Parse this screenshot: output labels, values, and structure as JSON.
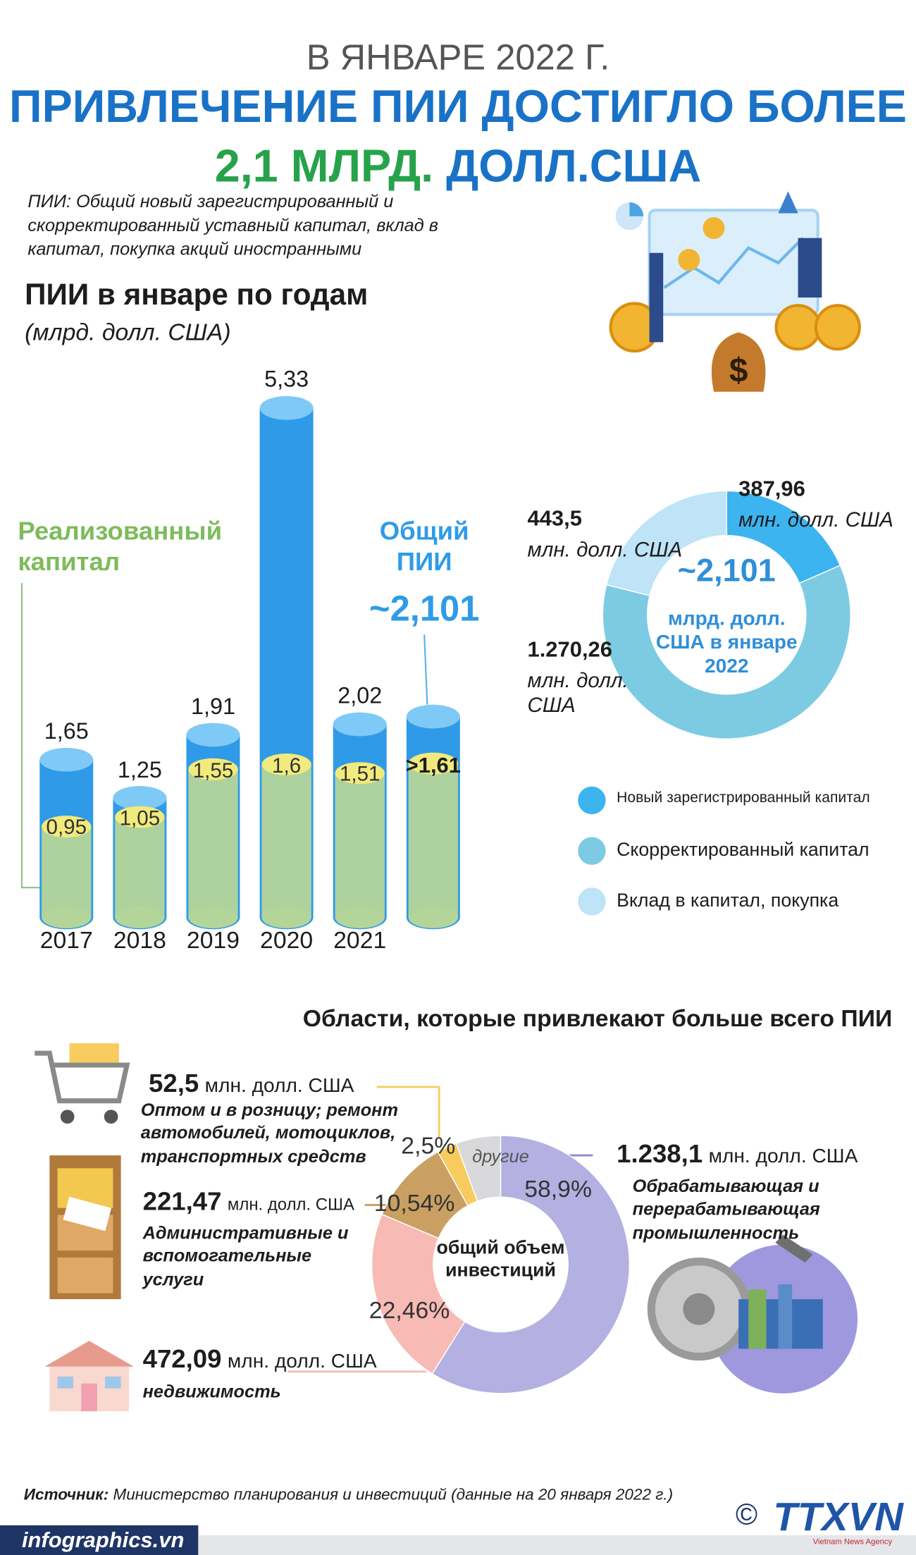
{
  "header": {
    "kicker": "В ЯНВАРЕ 2022 Г.",
    "title": "ПРИВЛЕЧЕНИЕ ПИИ ДОСТИГЛО БОЛЕЕ",
    "title_highlight": "2,1 МЛРД.",
    "title_end": "ДОЛЛ.США"
  },
  "definition": "ПИИ: Общий новый зарегистрированный и скорректированный уставный капитал, вклад в капитал, покупка акций иностранными",
  "chart_data": [
    {
      "type": "bar",
      "title": "ПИИ в январе по годам",
      "subtitle": "(млрд. долл. США)",
      "categories": [
        "2017",
        "2018",
        "2019",
        "2020",
        "2021",
        null
      ],
      "ylim": [
        0,
        5.5
      ],
      "series": [
        {
          "name": "Общий ПИИ",
          "color": "#2f9be8",
          "values": [
            1.65,
            1.25,
            1.91,
            5.33,
            2.02,
            2.101
          ],
          "value_labels": [
            "1,65",
            "1,25",
            "1,91",
            "5,33",
            "2,02",
            "~2,101"
          ]
        },
        {
          "name": "Реализованный капитал",
          "color": "#b4d59a",
          "values": [
            0.95,
            1.05,
            1.55,
            1.6,
            1.51,
            1.61
          ],
          "value_labels": [
            "0,95",
            "1,05",
            "1,55",
            "1,6",
            "1,51",
            ">1,61"
          ]
        }
      ]
    },
    {
      "type": "donut",
      "categories": [
        "Новый зарегистрированный капитал",
        "Скорректированный капитал",
        "Вклад в капитал, покупка"
      ],
      "values": [
        387.96,
        1270.26,
        443.5
      ],
      "value_labels": [
        "387,96",
        "1.270,26",
        "443,5"
      ],
      "unit": "млн. долл. США",
      "colors": [
        "#3cb4f0",
        "#7ccbe3",
        "#bfe3f7"
      ],
      "center_label": "~2,101",
      "center_text": "млрд. долл. США в январе 2022",
      "legend": true
    },
    {
      "type": "donut",
      "title": "Области, которые привлекают больше всего ПИИ",
      "categories": [
        "Обрабатывающая и перерабатывающая промышленность",
        "недвижимость",
        "Административные и вспомогательные услуги",
        "Оптом и в розницу; ремонт автомобилей, мотоциклов, транспортных средств",
        "другие"
      ],
      "values": [
        58.9,
        22.46,
        10.54,
        2.5,
        5.6
      ],
      "value_labels": [
        "58,9%",
        "22,46%",
        "10,54%",
        "2,5%",
        null
      ],
      "amounts": [
        1238.1,
        472.09,
        221.47,
        52.5,
        null
      ],
      "amount_labels": [
        "1.238,1",
        "472,09",
        "221,47",
        "52,5",
        null
      ],
      "unit": "млн. долл. США",
      "colors": [
        "#b4b0e2",
        "#f7bab5",
        "#c9a062",
        "#f8cb5e",
        "#d9d9dc"
      ],
      "center_text": "общий объем инвестиций",
      "legend": false
    }
  ],
  "source": {
    "label": "Источник:",
    "text": "Министерство планирования и инвестиций (данные на 20 января 2022 г.)"
  },
  "footer": {
    "site": "infographics.vn",
    "logo": "TTXVN",
    "agency": "Vietnam News Agency",
    "copyright": "©"
  }
}
